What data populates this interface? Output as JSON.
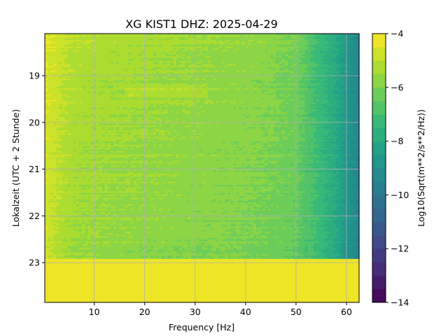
{
  "chart_data": {
    "type": "heatmap",
    "title": "XG KIST1  DHZ: 2025-04-29",
    "xlabel": "Frequency [Hz]",
    "ylabel": "Lokalzeit (UTC + 2 Stunde)",
    "colorbar_label": "Log10(Sqrt(m**2/s**2/Hz))",
    "colormap": "viridis",
    "xlim": [
      0.2,
      62.5
    ],
    "ylim_hours": [
      18.1,
      23.85
    ],
    "y_inverted": true,
    "clim": [
      -14,
      -4
    ],
    "colorbar_levels": 20,
    "grid": true,
    "x_ticks": [
      "10",
      "20",
      "30",
      "40",
      "50",
      "60"
    ],
    "x_tick_values": [
      10,
      20,
      30,
      40,
      50,
      60
    ],
    "y_ticks": [
      "19",
      "20",
      "21",
      "22",
      "23"
    ],
    "y_tick_values": [
      19,
      20,
      21,
      22,
      23
    ],
    "colorbar_ticks": [
      "−4",
      "−6",
      "−8",
      "−10",
      "−12",
      "−14"
    ],
    "colorbar_tick_values": [
      -4,
      -6,
      -8,
      -10,
      -12,
      -14
    ],
    "data_end_hour": 22.92,
    "no_data_value": -4,
    "spectrum_profile": {
      "frequency_hz": [
        0.2,
        2,
        4,
        6,
        10,
        20,
        30,
        40,
        45,
        50,
        52,
        55,
        58,
        60,
        62.5
      ],
      "log10_amplitude": [
        -4.6,
        -4.8,
        -5.1,
        -5.3,
        -5.4,
        -5.55,
        -5.7,
        -5.85,
        -6.0,
        -6.3,
        -6.7,
        -7.3,
        -8.0,
        -8.7,
        -9.4
      ]
    }
  },
  "colors": {
    "viridis_stops": [
      "#440154",
      "#482878",
      "#3e4989",
      "#31688e",
      "#26828e",
      "#1f9e89",
      "#35b779",
      "#6ece58",
      "#b5de2b",
      "#fde725"
    ],
    "grid": "#b0b0b0",
    "axes": "#000000"
  }
}
